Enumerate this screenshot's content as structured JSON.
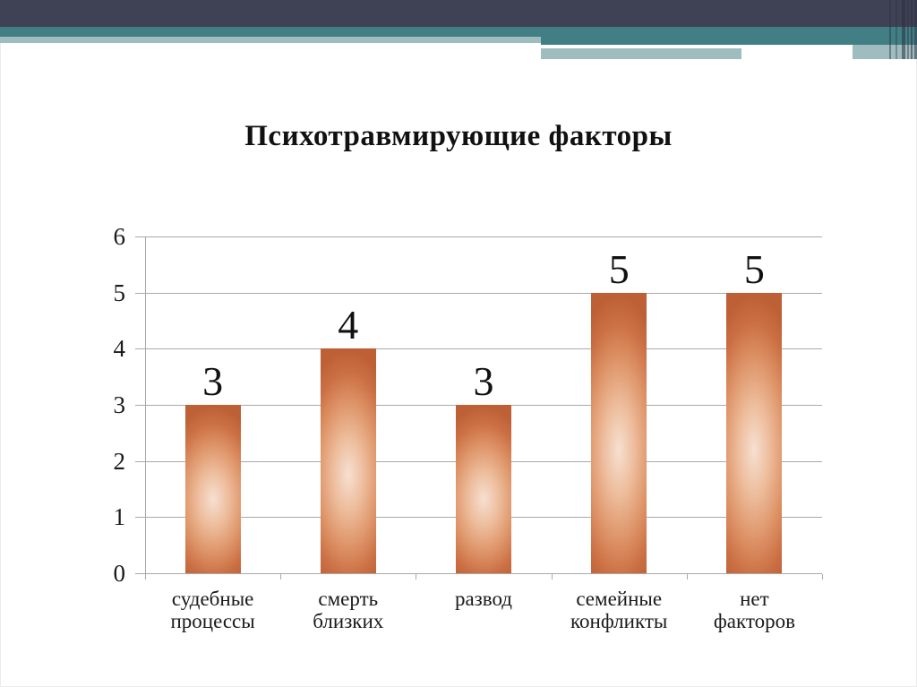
{
  "slide": {
    "title": "Психотравмирующие факторы"
  },
  "theme": {
    "header_dark": "#3F4254",
    "header_teal": "#417F84",
    "header_light_teal": "#9FBCBE",
    "slide_bg": "#FFFFFF",
    "grid_color": "#A9A9A9",
    "bar_gradient": [
      "#F6E0D2",
      "#EDBC9B",
      "#DE9468",
      "#CB7044",
      "#BD6036"
    ],
    "pinstripe_color": "#2C3042"
  },
  "chart_data": {
    "type": "bar",
    "title": "Психотравмирующие факторы",
    "categories": [
      "судебные процессы",
      "смерть близких",
      "развод",
      "семейные конфликты",
      "нет факторов"
    ],
    "category_lines": [
      [
        "судебные",
        "процессы"
      ],
      [
        "смерть",
        "близких"
      ],
      [
        "развод"
      ],
      [
        "семейные",
        "конфликты"
      ],
      [
        "нет",
        "факторов"
      ]
    ],
    "values": [
      3,
      4,
      3,
      5,
      5
    ],
    "bar_labels": [
      "3",
      "4",
      "3",
      "5",
      "5"
    ],
    "xlabel": "",
    "ylabel": "",
    "ylim": [
      0,
      6
    ],
    "yticks": [
      0,
      1,
      2,
      3,
      4,
      5,
      6
    ],
    "grid": true,
    "legend": false,
    "bar_color_style": "radial orange gradient, light center"
  }
}
